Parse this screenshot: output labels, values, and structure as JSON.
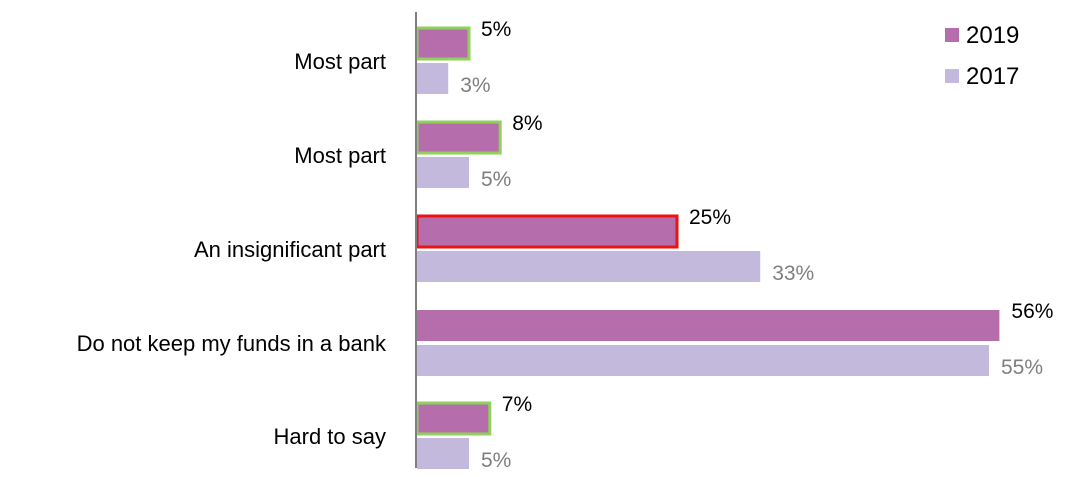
{
  "chart_data": {
    "type": "bar",
    "orientation": "horizontal",
    "categories": [
      "Most part",
      "Most part",
      "An insignificant part",
      "Do not keep my funds in a bank",
      "Hard to say"
    ],
    "series": [
      {
        "name": "2019",
        "color": "#b56eab",
        "values": [
          5,
          8,
          25,
          56,
          7
        ],
        "labels": [
          "5%",
          "8%",
          "25%",
          "56%",
          "7%"
        ],
        "outline_colors": [
          "#8fd15a",
          "#8fd15a",
          "#ee1111",
          null,
          "#8fd15a"
        ],
        "label_color": "#000000"
      },
      {
        "name": "2017",
        "color": "#c3b9dc",
        "values": [
          3,
          5,
          33,
          55,
          5
        ],
        "labels": [
          "3%",
          "5%",
          "33%",
          "55%",
          "5%"
        ],
        "label_color": "#7f7f7f"
      }
    ],
    "legend_position": "top-right",
    "grid": false
  }
}
